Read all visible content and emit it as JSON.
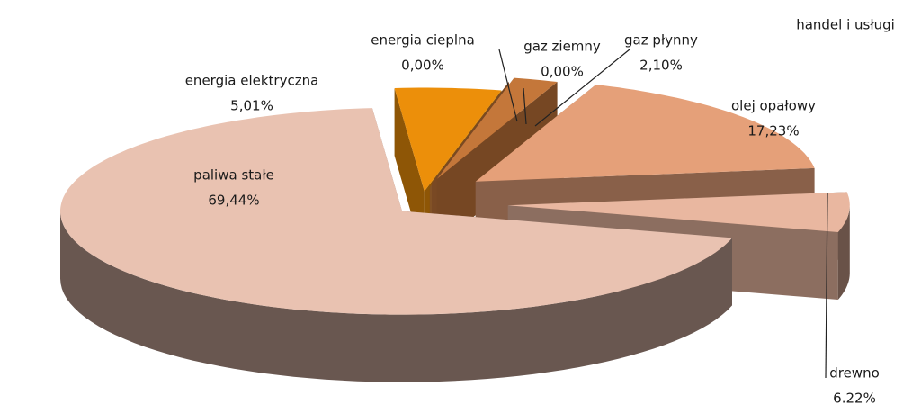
{
  "chart_data": {
    "type": "pie",
    "title": "handel i usługi",
    "categories": [
      "energia elektryczna",
      "energia cieplna",
      "gaz ziemny",
      "gaz płynny",
      "olej opałowy",
      "drewno",
      "paliwa stałe"
    ],
    "values": [
      5.01,
      0,
      0,
      2.1,
      17.23,
      6.22,
      69.44
    ],
    "value_labels": [
      "5,01%",
      "0,00%",
      "0,00%",
      "2,10%",
      "17,23%",
      "6.22%",
      "69,44%"
    ],
    "colors": [
      "#ec8f0a",
      "#d9883f",
      "#c97a3c",
      "#c4773a",
      "#e5a079",
      "#e9b7a0",
      "#e9c2b1"
    ]
  }
}
